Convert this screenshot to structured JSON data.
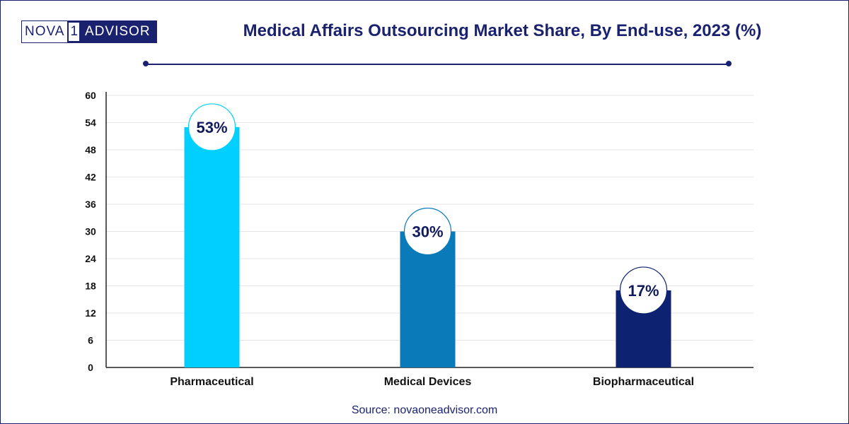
{
  "brand": {
    "logo_left": "NOVA",
    "logo_mid": "1",
    "logo_right": "ADVISOR"
  },
  "title": "Medical Affairs Outsourcing Market Share, By End-use, 2023 (%)",
  "source": "Source: novaoneadvisor.com",
  "chart_data": {
    "type": "bar",
    "title": "Medical Affairs Outsourcing Market Share, By End-use, 2023 (%)",
    "categories": [
      "Pharmaceutical",
      "Medical Devices",
      "Biopharmaceutical"
    ],
    "values": [
      53,
      30,
      17
    ],
    "labels": [
      "53%",
      "30%",
      "17%"
    ],
    "colors": [
      "#00cfff",
      "#0a7bb8",
      "#0d2270"
    ],
    "ylim": [
      0,
      60
    ],
    "yticks": [
      "0",
      "6",
      "12",
      "18",
      "24",
      "30",
      "36",
      "42",
      "48",
      "54",
      "60"
    ],
    "xlabel": "",
    "ylabel": "",
    "grid": true
  }
}
